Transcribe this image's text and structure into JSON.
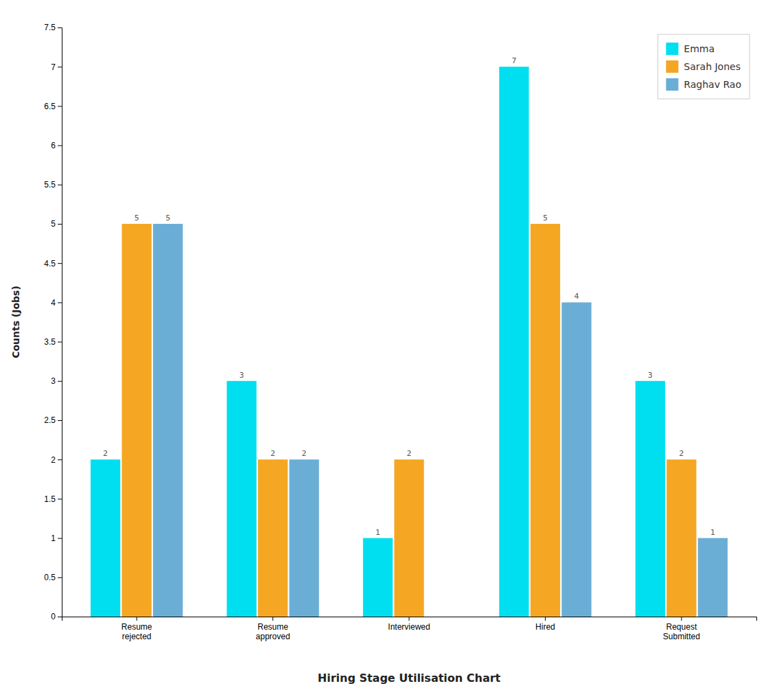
{
  "chart_data": {
    "type": "bar",
    "categories": [
      "Resume\nrejected",
      "Resume\napproved",
      "Interviewed",
      "Hired",
      "Request\nSubmitted"
    ],
    "series": [
      {
        "name": "Emma",
        "color": "#00DFEF",
        "values": [
          2,
          3,
          1,
          7,
          3
        ]
      },
      {
        "name": "Sarah Jones",
        "color": "#F5A623",
        "values": [
          5,
          2,
          2,
          5,
          2
        ]
      },
      {
        "name": "Raghav Rao",
        "color": "#6AAED6",
        "values": [
          5,
          2,
          0,
          4,
          1
        ]
      }
    ],
    "xlabel": "Hiring Stage Utilisation Chart",
    "ylabel": "Counts (Jobs)",
    "ylim": [
      0,
      7.5
    ],
    "yticks": [
      0,
      0.5,
      1,
      1.5,
      2,
      2.5,
      3,
      3.5,
      4,
      4.5,
      5,
      5.5,
      6,
      6.5,
      7,
      7.5
    ],
    "grid": false,
    "legend": "upper right",
    "data_labels": true
  }
}
